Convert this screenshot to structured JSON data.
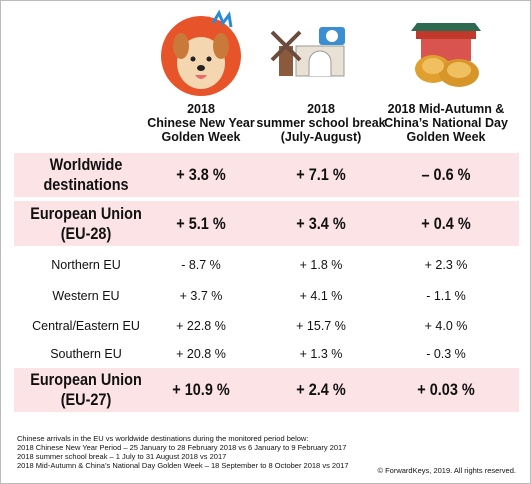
{
  "table": {
    "columns": [
      {
        "lines": [
          "2018",
          "Chinese New Year",
          "Golden Week"
        ]
      },
      {
        "lines": [
          "2018",
          "summer school break",
          "(July-August)"
        ]
      },
      {
        "lines": [
          "2018 Mid-Autumn &",
          "China’s National Day",
          "Golden Week"
        ]
      }
    ],
    "rows": [
      {
        "label": [
          "Worldwide",
          "destinations"
        ],
        "cells": [
          "+ 3.8 %",
          "+ 7.1 %",
          "– 0.6 %"
        ],
        "highlight": true
      },
      {
        "label": [
          "European Union",
          "(EU-28)"
        ],
        "cells": [
          "+ 5.1 %",
          "+ 3.4 %",
          "+ 0.4 %"
        ],
        "highlight": true
      },
      {
        "label": [
          "Northern EU"
        ],
        "cells": [
          "- 8.7 %",
          "+ 1.8 %",
          "+ 2.3 %"
        ],
        "highlight": false
      },
      {
        "label": [
          "Western EU"
        ],
        "cells": [
          "+ 3.7 %",
          "+ 4.1 %",
          "- 1.1 %"
        ],
        "highlight": false
      },
      {
        "label": [
          "Central/Eastern EU"
        ],
        "cells": [
          "+ 22.8 %",
          "+ 15.7 %",
          "+ 4.0 %"
        ],
        "highlight": false
      },
      {
        "label": [
          "Southern EU"
        ],
        "cells": [
          "+ 20.8 %",
          "+ 1.3 %",
          "- 0.3 %"
        ],
        "highlight": false
      },
      {
        "label": [
          "European Union",
          "(EU-27)"
        ],
        "cells": [
          "+ 10.9 %",
          "+ 2.4 %",
          "+ 0.03 %"
        ],
        "highlight": true
      }
    ]
  },
  "footnotes": [
    "Chinese arrivals in the EU vs worldwide destinations during the monitored period below:",
    "2018 Chinese New Year Period – 25 January to 28 February 2018 vs 6 January to 9 February 2017",
    "2018 summer school break – 1 July to 31 August 2018 vs 2017",
    "2018 Mid-Autumn & China’s National Day Golden Week – 18 September to 8 October 2018 vs 2017"
  ],
  "copyright": "© ForwardKeys, 2019. All rights reserved."
}
